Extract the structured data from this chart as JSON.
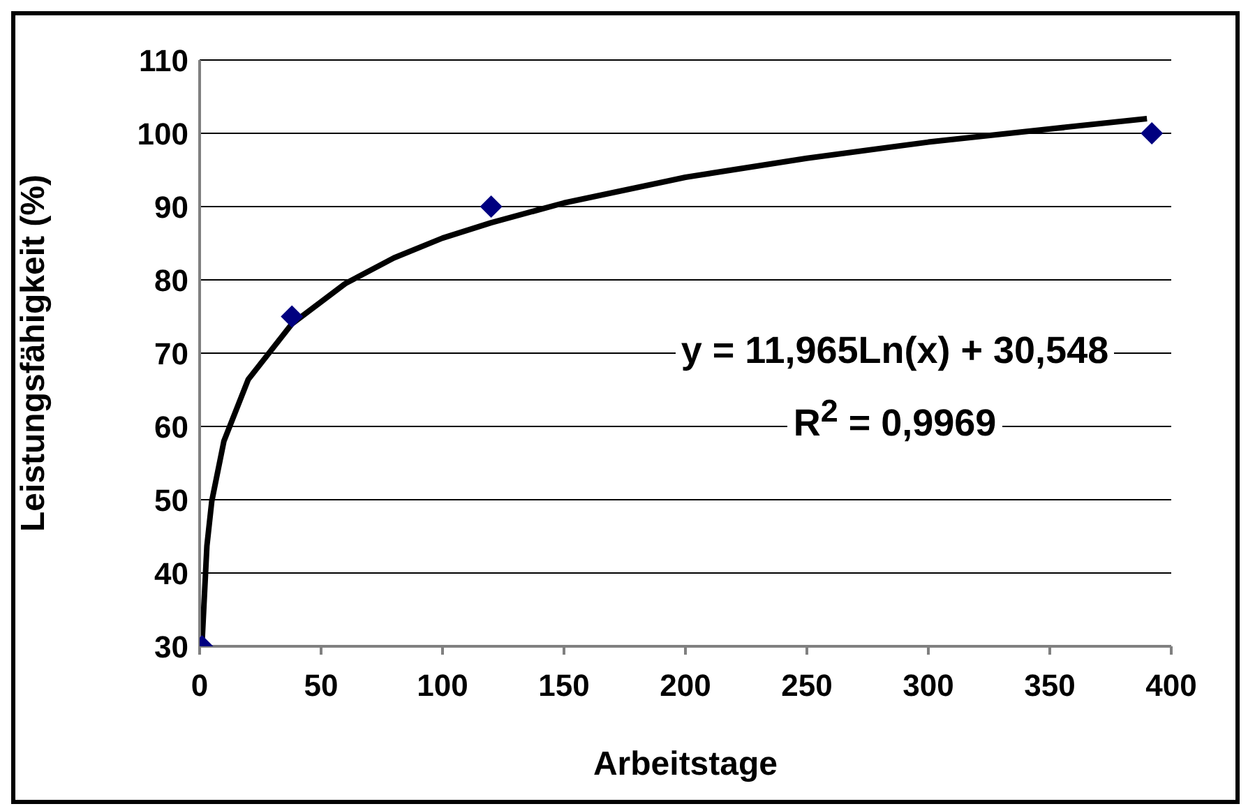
{
  "chart_data": {
    "type": "scatter",
    "xlabel": "Arbeitstage",
    "ylabel": "Leistungsfähigkeit (%)",
    "xlim": [
      0,
      400
    ],
    "xticks": [
      0,
      50,
      100,
      150,
      200,
      250,
      300,
      350,
      400
    ],
    "ylim": [
      30,
      110
    ],
    "yticks": [
      30,
      40,
      50,
      60,
      70,
      80,
      90,
      100,
      110
    ],
    "grid": "y",
    "legend": false,
    "marker": "diamond",
    "series": [
      {
        "color": "#000080",
        "x": [
          1,
          38,
          120,
          392
        ],
        "values": [
          30,
          75,
          90,
          100
        ]
      },
      {
        "type": "line",
        "color": "#000000",
        "marker": "none",
        "line_style": "solid",
        "x": [
          1,
          3,
          5,
          10,
          20,
          38,
          60,
          80,
          100,
          120,
          150,
          200,
          250,
          300,
          350,
          390
        ],
        "values": [
          30.5,
          43.7,
          49.8,
          58,
          66.4,
          74,
          79.5,
          83,
          85.7,
          87.8,
          90.5,
          94,
          96.6,
          98.8,
          100.6,
          102
        ]
      }
    ],
    "annotations": [
      "y = 11,965Ln(x) + 30,548",
      "R$^{2}$  = 0,9969"
    ]
  }
}
